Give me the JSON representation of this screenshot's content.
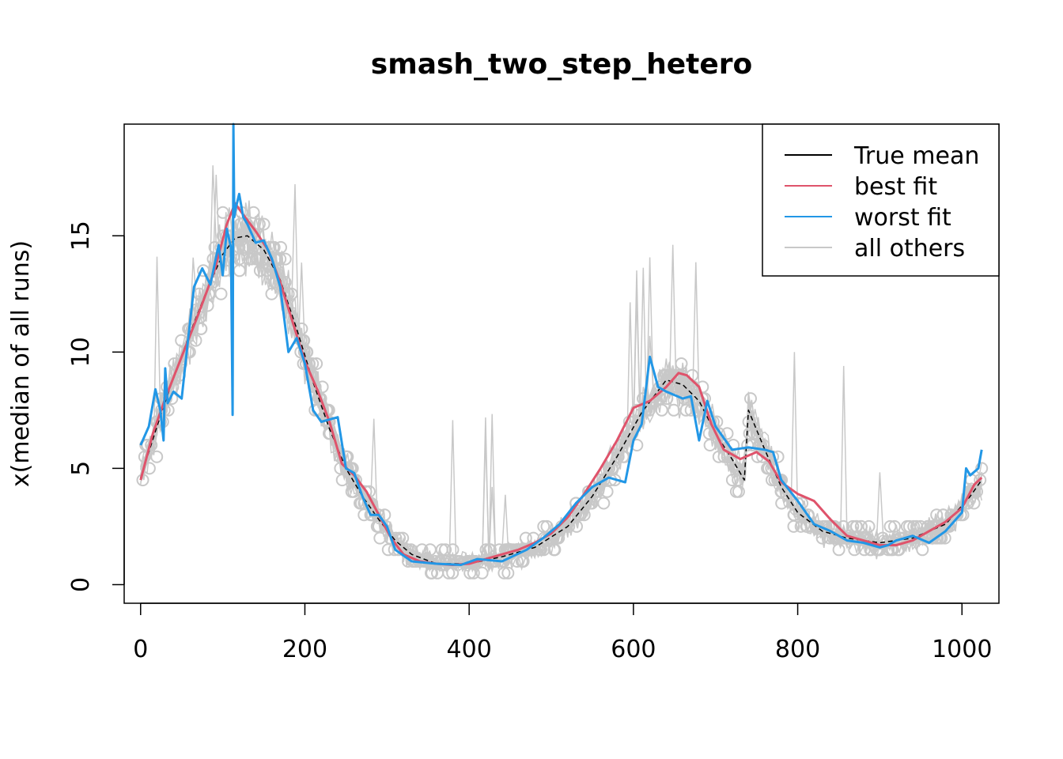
{
  "chart_data": {
    "type": "line",
    "title": "smash_two_step_hetero",
    "xlabel": "",
    "ylabel": "x(median of all runs)",
    "xlim": [
      -20,
      1045
    ],
    "ylim": [
      -0.8,
      19.8
    ],
    "xticks": [
      0,
      200,
      400,
      600,
      800,
      1000
    ],
    "yticks": [
      0,
      5,
      10,
      15
    ],
    "legend": {
      "placement": "top-right",
      "entries": [
        {
          "label": "True mean",
          "color": "#000000"
        },
        {
          "label": "best fit",
          "color": "#DF536B"
        },
        {
          "label": "worst fit",
          "color": "#2297E6"
        },
        {
          "label": "all others",
          "color": "#C8C8C8"
        }
      ]
    },
    "series": [
      {
        "name": "True mean",
        "color": "#000000",
        "style": "dashed",
        "x": [
          0,
          20,
          40,
          60,
          80,
          100,
          115,
          130,
          150,
          170,
          190,
          210,
          230,
          250,
          270,
          290,
          310,
          330,
          360,
          400,
          440,
          480,
          520,
          550,
          580,
          610,
          640,
          660,
          680,
          700,
          720,
          735,
          740,
          760,
          780,
          800,
          830,
          860,
          900,
          940,
          980,
          1010,
          1024
        ],
        "y": [
          4.6,
          6.8,
          8.9,
          10.8,
          12.6,
          14.2,
          14.9,
          15.0,
          14.4,
          13.1,
          11.0,
          8.7,
          6.7,
          5.0,
          3.8,
          2.8,
          1.9,
          1.3,
          0.9,
          0.9,
          1.2,
          1.6,
          2.5,
          3.8,
          5.5,
          7.4,
          8.8,
          8.6,
          7.9,
          6.5,
          5.4,
          4.5,
          7.5,
          5.8,
          4.2,
          3.1,
          2.3,
          2.0,
          1.8,
          2.0,
          2.6,
          3.8,
          4.5
        ]
      },
      {
        "name": "best fit",
        "color": "#DF536B",
        "style": "solid",
        "x": [
          0,
          15,
          30,
          50,
          70,
          90,
          105,
          115,
          125,
          140,
          155,
          170,
          185,
          200,
          215,
          230,
          245,
          260,
          275,
          290,
          305,
          320,
          340,
          360,
          380,
          400,
          420,
          440,
          460,
          480,
          500,
          520,
          540,
          560,
          580,
          600,
          620,
          640,
          655,
          665,
          680,
          695,
          710,
          730,
          750,
          765,
          780,
          800,
          820,
          840,
          860,
          880,
          900,
          920,
          940,
          960,
          980,
          1000,
          1015,
          1024
        ],
        "y": [
          4.5,
          6.5,
          8.0,
          9.8,
          11.6,
          13.5,
          15.5,
          16.4,
          15.9,
          15.2,
          14.4,
          13.0,
          11.3,
          9.6,
          8.4,
          7.0,
          5.2,
          4.7,
          4.0,
          3.0,
          2.0,
          1.3,
          1.0,
          0.9,
          0.85,
          0.9,
          1.1,
          1.3,
          1.5,
          1.8,
          2.2,
          2.9,
          3.9,
          5.0,
          6.2,
          7.6,
          7.9,
          8.5,
          9.1,
          9.0,
          8.5,
          6.9,
          5.8,
          5.4,
          5.7,
          5.3,
          4.4,
          3.9,
          3.6,
          2.8,
          2.1,
          1.9,
          1.7,
          1.7,
          1.9,
          2.3,
          2.7,
          3.3,
          4.3,
          4.6
        ]
      },
      {
        "name": "worst fit",
        "color": "#2297E6",
        "style": "solid",
        "x": [
          0,
          10,
          18,
          24,
          28,
          30,
          33,
          40,
          50,
          58,
          65,
          75,
          85,
          95,
          100,
          105,
          110,
          112,
          113,
          114,
          116,
          120,
          125,
          130,
          140,
          150,
          160,
          170,
          180,
          190,
          200,
          210,
          220,
          230,
          240,
          250,
          260,
          270,
          280,
          290,
          300,
          310,
          330,
          360,
          390,
          410,
          440,
          470,
          490,
          510,
          530,
          550,
          570,
          590,
          600,
          610,
          620,
          630,
          640,
          660,
          670,
          680,
          690,
          700,
          720,
          740,
          760,
          770,
          780,
          800,
          820,
          840,
          860,
          880,
          900,
          910,
          920,
          940,
          960,
          980,
          1000,
          1005,
          1010,
          1020,
          1024
        ],
        "y": [
          6.0,
          6.8,
          8.4,
          7.5,
          6.2,
          9.3,
          7.8,
          8.3,
          8.0,
          10.6,
          12.8,
          13.6,
          12.9,
          14.6,
          13.3,
          15.3,
          14.5,
          7.3,
          19.8,
          15.8,
          16.2,
          16.8,
          15.8,
          15.5,
          14.7,
          14.8,
          14.0,
          12.8,
          10.0,
          10.6,
          9.5,
          7.5,
          7.0,
          7.1,
          7.2,
          5.0,
          4.8,
          3.8,
          3.0,
          3.0,
          2.5,
          1.5,
          1.0,
          0.9,
          0.85,
          1.1,
          1.0,
          1.5,
          2.0,
          2.6,
          3.5,
          4.2,
          4.6,
          4.4,
          6.2,
          6.9,
          9.8,
          8.5,
          8.3,
          8.0,
          8.1,
          6.2,
          7.9,
          6.8,
          5.8,
          5.9,
          5.8,
          5.7,
          4.5,
          3.6,
          2.6,
          2.3,
          1.9,
          1.8,
          1.6,
          1.7,
          1.9,
          2.1,
          1.8,
          2.3,
          3.1,
          5.0,
          4.7,
          5.0,
          5.8
        ]
      }
    ]
  }
}
